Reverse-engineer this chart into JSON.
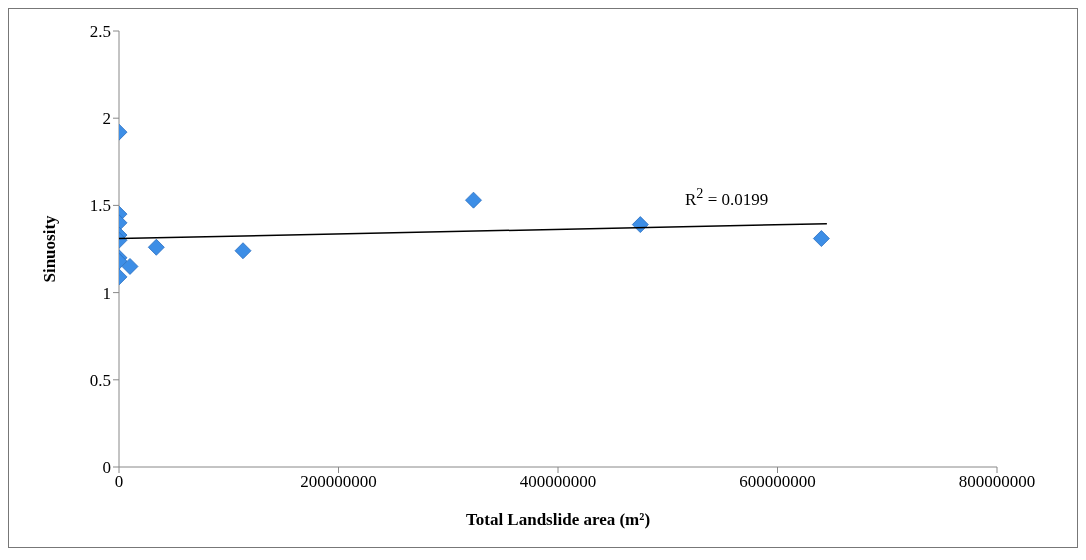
{
  "chart_data": {
    "type": "scatter",
    "xlabel": "Total Landslide area (m²)",
    "ylabel": "Sinuosity",
    "grid": false,
    "legend": false,
    "xlim": [
      0,
      800000000
    ],
    "xticks": [
      0,
      200000000,
      400000000,
      600000000,
      800000000
    ],
    "ylim": [
      0,
      2.5
    ],
    "yticks": [
      0,
      0.5,
      1,
      1.5,
      2,
      2.5
    ],
    "series": [
      {
        "marker": "diamond",
        "color": "#3d8ee6",
        "x": [
          0,
          0,
          0,
          0,
          0,
          0,
          0,
          10000000,
          0,
          34000000,
          113000000,
          323000000,
          475000000,
          640000000
        ],
        "values": [
          1.92,
          1.45,
          1.4,
          1.33,
          1.3,
          1.2,
          1.18,
          1.15,
          1.09,
          1.26,
          1.24,
          1.53,
          1.39,
          1.31
        ]
      },
      {
        "type": "line",
        "marker": "none",
        "color": "#000000",
        "x": [
          0,
          645000000
        ],
        "values": [
          1.31,
          1.395
        ]
      }
    ],
    "annotations": [
      "R$^{2}$ = 0.0199"
    ]
  }
}
